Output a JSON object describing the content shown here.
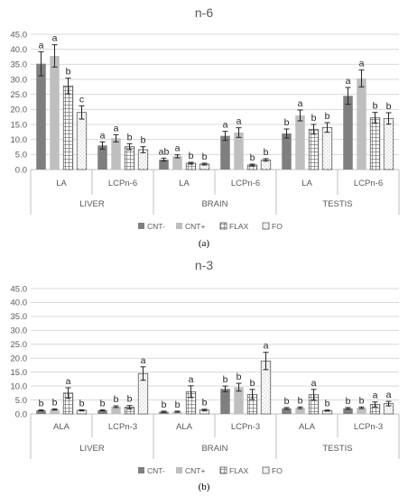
{
  "chart_data": [
    {
      "type": "bar",
      "title": "n-6",
      "panel_label": "(a)",
      "ylim": [
        0,
        45
      ],
      "y_ticks": [
        "0.0",
        "5.0",
        "10.0",
        "15.0",
        "20.0",
        "25.0",
        "30.0",
        "35.0",
        "40.0",
        "45.0"
      ],
      "grid": true,
      "legend_position": "bottom",
      "groups": [
        "LIVER",
        "BRAIN",
        "TESTIS"
      ],
      "categories": [
        "LA",
        "LCPn-6",
        "LA",
        "LCPn-6",
        "LA",
        "LCPn-6"
      ],
      "series": [
        {
          "name": "CNT-",
          "color": "#7f7f7f",
          "pattern": "solid",
          "values": [
            35.2,
            8.0,
            3.3,
            11.2,
            12.0,
            24.5
          ],
          "errors": [
            4.0,
            1.2,
            0.5,
            1.5,
            1.5,
            2.8
          ],
          "letters": [
            "a",
            "a",
            "ab",
            "a",
            "b",
            "a"
          ]
        },
        {
          "name": "CNT+",
          "color": "#bfbfbf",
          "pattern": "solid",
          "values": [
            37.8,
            10.4,
            4.4,
            12.3,
            18.0,
            30.3
          ],
          "errors": [
            3.7,
            1.2,
            0.5,
            1.6,
            1.8,
            2.8
          ],
          "letters": [
            "a",
            "a",
            "a",
            "a",
            "a",
            "a"
          ]
        },
        {
          "name": "FLAX",
          "color": "#ffffff",
          "pattern": "grid",
          "values": [
            27.8,
            7.6,
            2.1,
            1.5,
            13.4,
            17.2
          ],
          "errors": [
            2.6,
            1.0,
            0.3,
            0.3,
            1.6,
            1.8
          ],
          "letters": [
            "b",
            "b",
            "b",
            "b",
            "b",
            "b"
          ]
        },
        {
          "name": "FO",
          "color": "#ffffff",
          "pattern": "dots",
          "values": [
            19.0,
            6.6,
            1.8,
            3.2,
            14.0,
            17.0
          ],
          "errors": [
            2.2,
            1.0,
            0.3,
            0.4,
            1.6,
            1.9
          ],
          "letters": [
            "c",
            "b",
            "b",
            "b",
            "b",
            "b"
          ]
        }
      ]
    },
    {
      "type": "bar",
      "title": "n-3",
      "panel_label": "(b)",
      "ylim": [
        0,
        45
      ],
      "y_ticks": [
        "0.0",
        "5.0",
        "10.0",
        "15.0",
        "20.0",
        "25.0",
        "30.0",
        "35.0",
        "40.0",
        "45.0"
      ],
      "grid": true,
      "legend_position": "bottom",
      "groups": [
        "LIVER",
        "BRAIN",
        "TESTIS"
      ],
      "categories": [
        "ALA",
        "LCPn-3",
        "ALA",
        "LCPn-3",
        "ALA",
        "LCPn-3"
      ],
      "series": [
        {
          "name": "CNT-",
          "color": "#7f7f7f",
          "pattern": "solid",
          "values": [
            1.3,
            1.3,
            0.8,
            9.0,
            2.0,
            2.0
          ],
          "errors": [
            0.2,
            0.2,
            0.2,
            1.0,
            0.3,
            0.3
          ],
          "letters": [
            "b",
            "b",
            "b",
            "b",
            "b",
            "b"
          ]
        },
        {
          "name": "CNT+",
          "color": "#bfbfbf",
          "pattern": "solid",
          "values": [
            1.6,
            2.6,
            0.8,
            9.6,
            2.2,
            2.2
          ],
          "errors": [
            0.2,
            0.3,
            0.2,
            1.4,
            0.3,
            0.3
          ],
          "letters": [
            "b",
            "b",
            "b",
            "b",
            "b",
            "b"
          ]
        },
        {
          "name": "FLAX",
          "color": "#ffffff",
          "pattern": "grid",
          "values": [
            7.5,
            2.4,
            8.0,
            7.0,
            6.9,
            3.4
          ],
          "errors": [
            1.9,
            0.6,
            2.1,
            1.8,
            1.9,
            0.9
          ],
          "letters": [
            "a",
            "b",
            "a",
            "b",
            "a",
            "a"
          ]
        },
        {
          "name": "FO",
          "color": "#ffffff",
          "pattern": "dots",
          "values": [
            1.3,
            14.5,
            1.4,
            19.0,
            1.2,
            3.7
          ],
          "errors": [
            0.2,
            2.4,
            0.3,
            3.1,
            0.2,
            0.8
          ],
          "letters": [
            "b",
            "a",
            "b",
            "a",
            "b",
            "a"
          ]
        }
      ]
    }
  ]
}
